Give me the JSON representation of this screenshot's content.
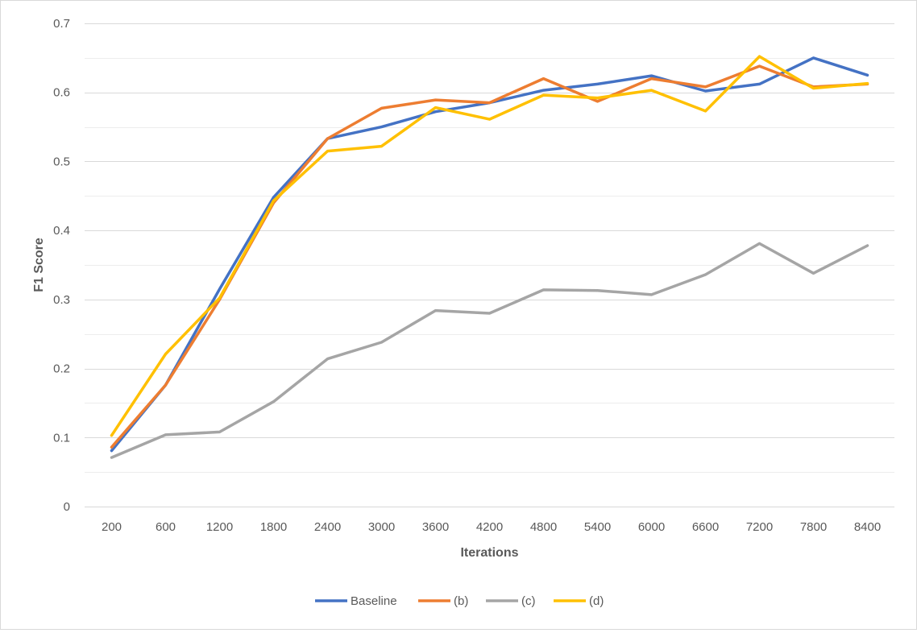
{
  "chart_data": {
    "type": "line",
    "title": "",
    "xlabel": "Iterations",
    "ylabel": "F1 Score",
    "ylim": [
      0,
      0.7
    ],
    "y_ticks": [
      "0",
      "0.1",
      "0.2",
      "0.3",
      "0.4",
      "0.5",
      "0.6",
      "0.7"
    ],
    "grid": true,
    "legend_position": "bottom",
    "categories": [
      "200",
      "600",
      "1200",
      "1800",
      "2400",
      "3000",
      "3600",
      "4200",
      "4800",
      "5400",
      "6000",
      "6600",
      "7200",
      "7800",
      "8400"
    ],
    "series": [
      {
        "name": "Baseline",
        "color": "#4472c4",
        "values": [
          0.081,
          0.176,
          0.315,
          0.448,
          0.533,
          0.55,
          0.572,
          0.585,
          0.603,
          0.612,
          0.624,
          0.602,
          0.612,
          0.65,
          0.625
        ]
      },
      {
        "name": "(b)",
        "color": "#ed7d31",
        "values": [
          0.086,
          0.176,
          0.3,
          0.44,
          0.533,
          0.577,
          0.589,
          0.585,
          0.62,
          0.587,
          0.62,
          0.608,
          0.638,
          0.608,
          0.612
        ]
      },
      {
        "name": "(c)",
        "color": "#a5a5a5",
        "values": [
          0.071,
          0.104,
          0.108,
          0.152,
          0.214,
          0.238,
          0.284,
          0.28,
          0.314,
          0.313,
          0.307,
          0.336,
          0.381,
          0.338,
          0.378
        ]
      },
      {
        "name": "(d)",
        "color": "#ffc000",
        "values": [
          0.103,
          0.221,
          0.302,
          0.443,
          0.515,
          0.522,
          0.578,
          0.561,
          0.596,
          0.592,
          0.603,
          0.573,
          0.652,
          0.606,
          0.613
        ]
      }
    ]
  }
}
